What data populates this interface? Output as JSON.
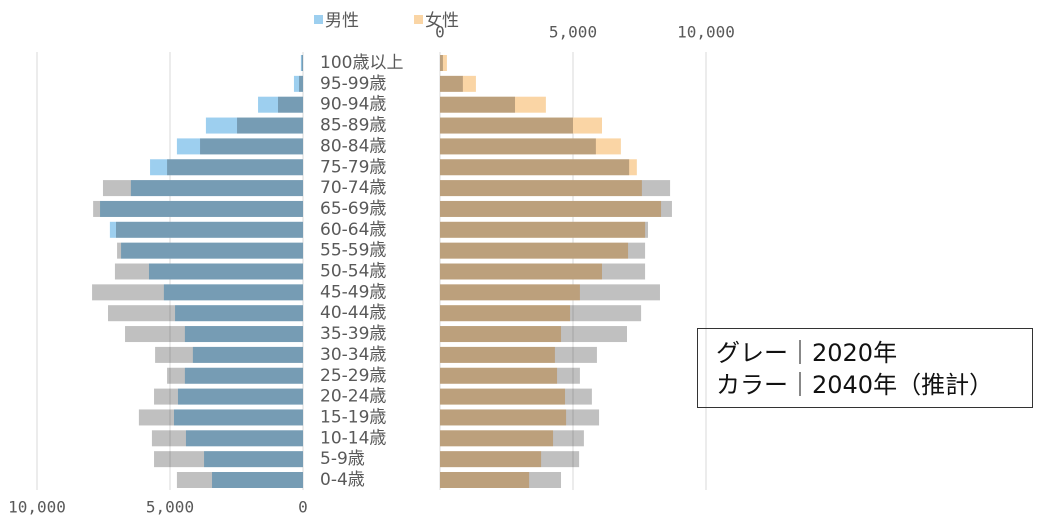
{
  "chart_data": {
    "type": "pyramid",
    "categories": [
      "100歳以上",
      "95-99歳",
      "90-94歳",
      "85-89歳",
      "80-84歳",
      "75-79歳",
      "70-74歳",
      "65-69歳",
      "60-64歳",
      "55-59歳",
      "50-54歳",
      "45-49歳",
      "40-44歳",
      "35-39歳",
      "30-34歳",
      "25-29歳",
      "20-24歳",
      "15-19歳",
      "10-14歳",
      "5-9歳",
      "0-4歳"
    ],
    "series": [
      {
        "name": "男性",
        "color": "#9dcfef",
        "values": [
          80,
          340,
          1690,
          3650,
          4740,
          5750,
          6470,
          7630,
          7260,
          6840,
          5790,
          5230,
          4810,
          4440,
          4140,
          4440,
          4700,
          4850,
          4400,
          3720,
          3420
        ],
        "comparison_values": [
          50,
          150,
          940,
          2480,
          3870,
          5110,
          7520,
          7890,
          7030,
          6990,
          7070,
          7930,
          7330,
          6690,
          5560,
          5110,
          5600,
          6170,
          5680,
          5600,
          4740
        ]
      },
      {
        "name": "女性",
        "color": "#fad5a5",
        "values": [
          260,
          1350,
          3980,
          6090,
          6800,
          7400,
          7590,
          8310,
          7710,
          7070,
          6090,
          5260,
          4890,
          4550,
          4320,
          4400,
          4700,
          4740,
          4250,
          3800,
          3350
        ],
        "comparison_values": [
          110,
          860,
          2820,
          5000,
          5860,
          7110,
          8650,
          8720,
          7820,
          7710,
          7710,
          8270,
          7560,
          7030,
          5900,
          5260,
          5710,
          5980,
          5410,
          5230,
          4550
        ]
      }
    ],
    "comparison_color": "#c0c0c0",
    "xlim": [
      0,
      10000
    ],
    "xticks": [
      0,
      {
        "value": 5000,
        "label": "5,000"
      },
      {
        "value": 10000,
        "label": "10,000"
      }
    ],
    "grid": true,
    "annotations": [
      "グレー｜2020年",
      "カラー｜2040年（推計）"
    ]
  }
}
